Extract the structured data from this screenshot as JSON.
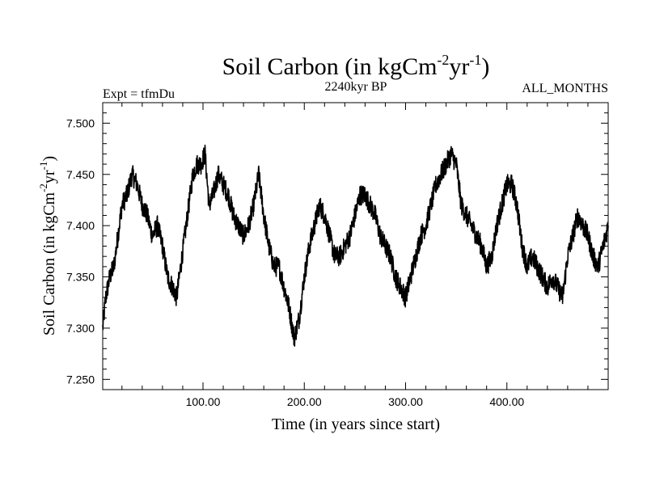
{
  "chart_data": {
    "type": "line",
    "title_main": "Soil Carbon (in kgCm",
    "title_sup1": "-2",
    "title_mid": "yr",
    "title_sup2": "-1",
    "title_end": ")",
    "subtitle_left": "Expt = tfmDu",
    "subtitle_center": "2240kyr BP",
    "subtitle_right": "ALL_MONTHS",
    "xlabel": "Time (in years since start)",
    "ylabel_main": "Soil Carbon (in kgCm",
    "ylabel_sup1": "-2",
    "ylabel_mid": "yr",
    "ylabel_sup2": "-1",
    "ylabel_end": ")",
    "xlim": [
      1,
      500
    ],
    "ylim": [
      7.24,
      7.52
    ],
    "x_ticks": [
      100,
      200,
      300,
      400
    ],
    "x_tick_labels": [
      "100.00",
      "200.00",
      "300.00",
      "400.00"
    ],
    "y_ticks": [
      7.25,
      7.3,
      7.35,
      7.4,
      7.45,
      7.5
    ],
    "y_tick_labels": [
      "7.250",
      "7.300",
      "7.350",
      "7.400",
      "7.450",
      "7.500"
    ],
    "series": [
      {
        "name": "Soil Carbon",
        "color": "#000000",
        "x": [
          1,
          4,
          8,
          12,
          16,
          20,
          25,
          30,
          35,
          40,
          45,
          50,
          55,
          60,
          65,
          70,
          74,
          78,
          82,
          86,
          90,
          94,
          98,
          102,
          106,
          110,
          115,
          120,
          125,
          130,
          135,
          140,
          145,
          150,
          155,
          160,
          165,
          170,
          175,
          180,
          185,
          190,
          195,
          200,
          205,
          210,
          215,
          220,
          225,
          230,
          235,
          240,
          245,
          250,
          255,
          260,
          265,
          270,
          275,
          280,
          285,
          290,
          295,
          300,
          305,
          310,
          315,
          320,
          325,
          330,
          335,
          340,
          345,
          350,
          355,
          360,
          365,
          370,
          375,
          380,
          385,
          390,
          395,
          400,
          405,
          410,
          415,
          420,
          425,
          430,
          435,
          440,
          445,
          450,
          455,
          460,
          465,
          470,
          475,
          480,
          485,
          490,
          495,
          500
        ],
        "y": [
          7.3,
          7.33,
          7.35,
          7.36,
          7.39,
          7.42,
          7.43,
          7.45,
          7.44,
          7.42,
          7.41,
          7.39,
          7.4,
          7.38,
          7.35,
          7.34,
          7.33,
          7.36,
          7.39,
          7.42,
          7.45,
          7.46,
          7.46,
          7.47,
          7.42,
          7.43,
          7.45,
          7.44,
          7.43,
          7.41,
          7.4,
          7.39,
          7.4,
          7.42,
          7.45,
          7.41,
          7.38,
          7.36,
          7.36,
          7.34,
          7.32,
          7.29,
          7.31,
          7.35,
          7.38,
          7.4,
          7.42,
          7.41,
          7.39,
          7.37,
          7.37,
          7.38,
          7.39,
          7.41,
          7.43,
          7.43,
          7.42,
          7.41,
          7.39,
          7.38,
          7.37,
          7.35,
          7.34,
          7.33,
          7.35,
          7.37,
          7.39,
          7.4,
          7.42,
          7.44,
          7.45,
          7.46,
          7.47,
          7.46,
          7.42,
          7.41,
          7.4,
          7.39,
          7.38,
          7.36,
          7.37,
          7.4,
          7.42,
          7.44,
          7.44,
          7.42,
          7.38,
          7.36,
          7.37,
          7.36,
          7.35,
          7.34,
          7.35,
          7.34,
          7.33,
          7.37,
          7.39,
          7.41,
          7.4,
          7.39,
          7.37,
          7.36,
          7.38,
          7.4
        ]
      }
    ]
  }
}
